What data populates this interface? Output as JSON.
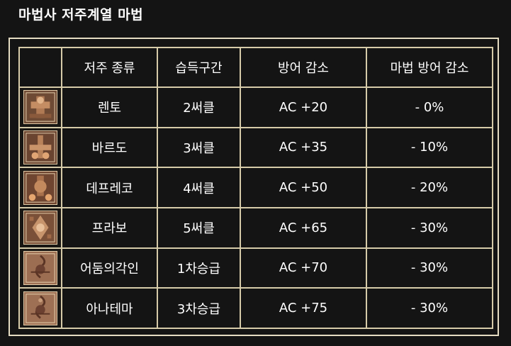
{
  "title": "마법사 저주계열 마법",
  "table": {
    "headers": [
      "",
      "저주 종류",
      "습득구간",
      "방어 감소",
      "마법 방어 감소"
    ],
    "rows": [
      {
        "icon": "curse-skill-icon",
        "name": "렌토",
        "tier": "2써클",
        "ac": "AC +20",
        "mr": "- 0%"
      },
      {
        "icon": "curse-skill-icon",
        "name": "바르도",
        "tier": "3써클",
        "ac": "AC +35",
        "mr": "- 10%"
      },
      {
        "icon": "curse-skill-icon",
        "name": "데프레코",
        "tier": "4써클",
        "ac": "AC +50",
        "mr": "- 20%"
      },
      {
        "icon": "curse-skill-icon",
        "name": "프라보",
        "tier": "5써클",
        "ac": "AC +65",
        "mr": "- 30%"
      },
      {
        "icon": "curse-skill-icon",
        "name": "어둠의각인",
        "tier": "1차승급",
        "ac": "AC +70",
        "mr": "- 30%"
      },
      {
        "icon": "curse-skill-icon",
        "name": "아나테마",
        "tier": "3차승급",
        "ac": "AC +75",
        "mr": "- 30%"
      }
    ]
  },
  "colors": {
    "background": "#141414",
    "border": "#d6cba9",
    "text": "#ffffff",
    "icon_tone": "#b07a54"
  }
}
